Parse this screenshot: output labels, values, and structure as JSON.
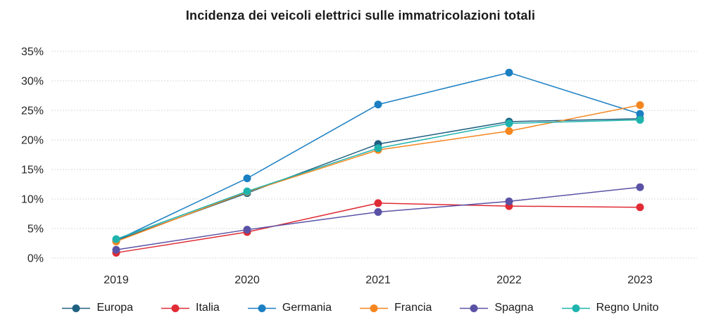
{
  "chart_data": {
    "type": "line",
    "title": "Incidenza dei veicoli elettrici sulle immatricolazioni totali",
    "x": [
      "2019",
      "2020",
      "2021",
      "2022",
      "2023"
    ],
    "yticks": [
      "0%",
      "5%",
      "10%",
      "15%",
      "20%",
      "25%",
      "30%",
      "35%"
    ],
    "ylim": [
      0,
      35
    ],
    "ylabel": "",
    "xlabel": "",
    "grid": "horizontal-dashed",
    "legend_position": "bottom",
    "series": [
      {
        "name": "Europa",
        "color": "#1f6082",
        "values": [
          3.0,
          11.0,
          19.3,
          23.1,
          23.6
        ]
      },
      {
        "name": "Italia",
        "color": "#e02b35",
        "values": [
          0.9,
          4.4,
          9.3,
          8.8,
          8.6
        ]
      },
      {
        "name": "Germania",
        "color": "#1b7fc2",
        "values": [
          3.0,
          13.5,
          26.0,
          31.4,
          24.4
        ]
      },
      {
        "name": "Francia",
        "color": "#f5861f",
        "values": [
          2.8,
          11.2,
          18.3,
          21.5,
          25.9
        ]
      },
      {
        "name": "Spagna",
        "color": "#5a52a5",
        "values": [
          1.4,
          4.8,
          7.8,
          9.6,
          12.0
        ]
      },
      {
        "name": "Regno Unito",
        "color": "#1fb3ae",
        "values": [
          3.2,
          11.3,
          18.6,
          22.8,
          23.4
        ]
      }
    ]
  },
  "style": {
    "grid_color": "#d9d9d9",
    "axis_text_color": "#262626",
    "background": "#ffffff"
  }
}
